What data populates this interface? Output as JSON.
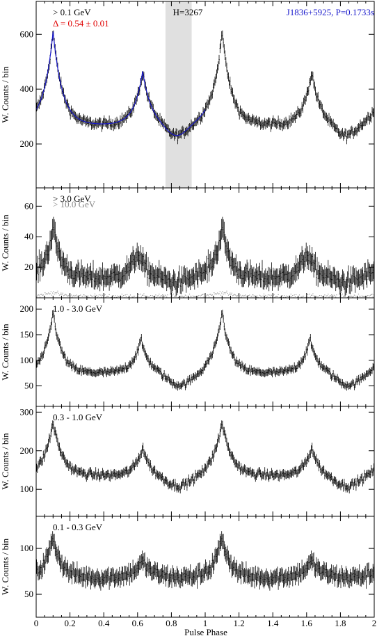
{
  "figure": {
    "xlabel": "Pulse Phase",
    "ylabel": "W. Counts / bin",
    "x_ticks": [
      "0",
      "0.2",
      "0.4",
      "0.6",
      "0.8",
      "1",
      "1.2",
      "1.4",
      "1.6",
      "1.8",
      "2"
    ],
    "colors": {
      "black": "#000000",
      "blue": "#1a1acc",
      "red": "#e00000",
      "gray": "#888888",
      "band": "#e0e0e0"
    }
  },
  "chart_data": [
    {
      "type": "line",
      "energy_label": "> 0.1 GeV",
      "annotation_delta": "Δ = 0.54 ± 0.01",
      "annotation_h": "H=3267",
      "annotation_psr": "J1836+5925, P=0.1733s",
      "xlim": [
        0,
        2
      ],
      "ylim": [
        40,
        720
      ],
      "y_ticks": [
        "200",
        "400",
        "600"
      ],
      "shaded_phase": [
        0.765,
        0.92
      ],
      "profile": {
        "baseline": 270,
        "peaks": [
          {
            "phase": 0.1,
            "height": 340,
            "width": 0.055
          },
          {
            "phase": 0.63,
            "height": 195,
            "width": 0.05
          }
        ],
        "bridge": {
          "phase": 0.38,
          "height": 0,
          "width": 0.2
        },
        "noise": 14,
        "dip": {
          "phase": 0.83,
          "depth": 45,
          "width": 0.06
        }
      },
      "fit_model": true
    },
    {
      "type": "line",
      "energy_label": "> 3.0 GeV",
      "energy_label_2": "> 10.0 GeV",
      "xlim": [
        0,
        2
      ],
      "ylim": [
        0,
        72
      ],
      "y_ticks": [
        "20",
        "40",
        "60"
      ],
      "profile": {
        "baseline": 13,
        "peaks": [
          {
            "phase": 0.1,
            "height": 33,
            "width": 0.05
          },
          {
            "phase": 0.6,
            "height": 17,
            "width": 0.05
          }
        ],
        "bridge": {
          "phase": 0.38,
          "height": 0,
          "width": 0.2
        },
        "noise": 5,
        "dip": {
          "phase": 0.83,
          "depth": 3,
          "width": 0.06
        }
      },
      "second_profile": {
        "baseline": 1,
        "peaks": [
          {
            "phase": 0.1,
            "height": 3,
            "width": 0.05
          }
        ],
        "noise": 1
      }
    },
    {
      "type": "line",
      "energy_label": "1.0 - 3.0 GeV",
      "xlim": [
        0,
        2
      ],
      "ylim": [
        10,
        222
      ],
      "y_ticks": [
        "50",
        "100",
        "150",
        "200"
      ],
      "profile": {
        "baseline": 75,
        "peaks": [
          {
            "phase": 0.1,
            "height": 120,
            "width": 0.05
          },
          {
            "phase": 0.62,
            "height": 65,
            "width": 0.05
          }
        ],
        "bridge": {
          "phase": 0.38,
          "height": 0,
          "width": 0.2
        },
        "noise": 6,
        "dip": {
          "phase": 0.85,
          "depth": 25,
          "width": 0.07
        }
      }
    },
    {
      "type": "line",
      "energy_label": "0.3 - 1.0 GeV",
      "xlim": [
        0,
        2
      ],
      "ylim": [
        30,
        315
      ],
      "y_ticks": [
        "100",
        "200",
        "300"
      ],
      "profile": {
        "baseline": 125,
        "peaks": [
          {
            "phase": 0.1,
            "height": 145,
            "width": 0.06
          },
          {
            "phase": 0.63,
            "height": 80,
            "width": 0.05
          }
        ],
        "bridge": {
          "phase": 0.38,
          "height": 10,
          "width": 0.2
        },
        "noise": 9,
        "dip": {
          "phase": 0.84,
          "depth": 20,
          "width": 0.06
        }
      }
    },
    {
      "type": "line",
      "energy_label": "0.1 - 0.3 GeV",
      "xlim": [
        0,
        2
      ],
      "ylim": [
        25,
        135
      ],
      "y_ticks": [
        "50",
        "100"
      ],
      "profile": {
        "baseline": 68,
        "peaks": [
          {
            "phase": 0.1,
            "height": 45,
            "width": 0.05
          },
          {
            "phase": 0.63,
            "height": 18,
            "width": 0.06
          }
        ],
        "bridge": {
          "phase": 0.38,
          "height": 0,
          "width": 0.2
        },
        "noise": 7,
        "dip": {
          "phase": 0.84,
          "depth": 0,
          "width": 0.06
        }
      }
    }
  ]
}
